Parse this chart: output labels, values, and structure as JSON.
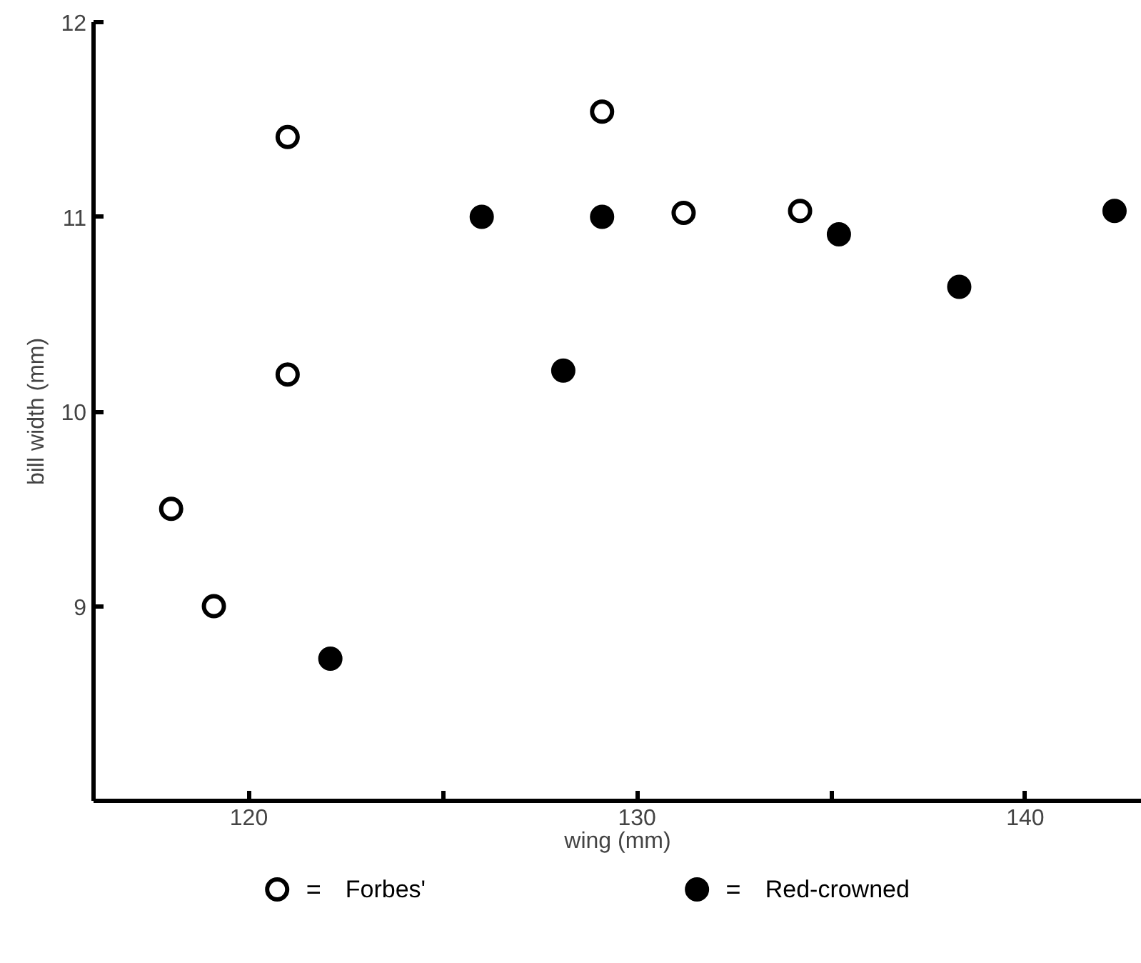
{
  "chart_data": {
    "type": "scatter",
    "xlabel": "wing (mm)",
    "ylabel": "bill width (mm)",
    "xlim": [
      116,
      143
    ],
    "ylim": [
      8,
      12
    ],
    "xticks": [
      120,
      {
        "value": 125,
        "label": null
      },
      130,
      {
        "value": 135,
        "label": null
      },
      140
    ],
    "yticks": [
      {
        "value": 8,
        "label": null
      },
      9,
      10,
      11,
      12
    ],
    "grid": false,
    "legend": "bottom",
    "marker": "circle",
    "annotations": [
      "=",
      "="
    ],
    "series": [
      {
        "name": "Forbes'",
        "color": "#ffffff",
        "x": [
          121.0,
          129.1,
          131.2,
          118.0,
          119.1,
          121.0,
          134.2
        ],
        "values": [
          11.41,
          11.54,
          11.02,
          9.5,
          9.0,
          10.19,
          11.03
        ]
      },
      {
        "name": "Red-crowned",
        "color": "#000000",
        "x": [
          126.0,
          129.1,
          128.1,
          138.3,
          142.3,
          122.1,
          135.2
        ],
        "values": [
          11.0,
          11.0,
          10.21,
          10.64,
          11.03,
          8.73,
          10.91
        ]
      }
    ]
  }
}
